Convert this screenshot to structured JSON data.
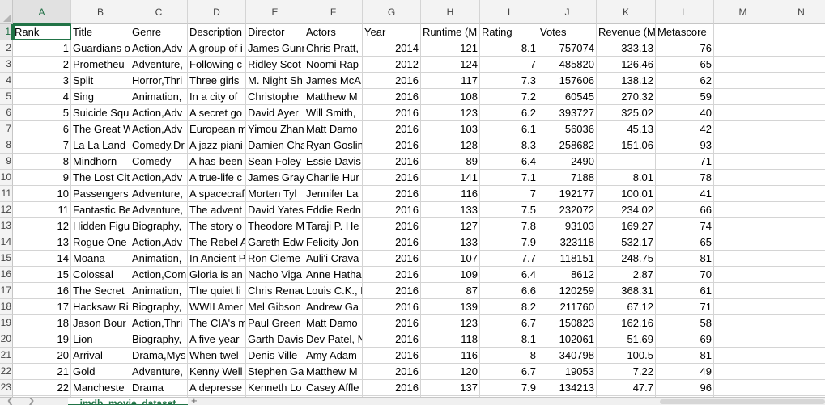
{
  "columns": [
    "A",
    "B",
    "C",
    "D",
    "E",
    "F",
    "G",
    "H",
    "I",
    "J",
    "K",
    "L",
    "M",
    "N"
  ],
  "headers": [
    "Rank",
    "Title",
    "Genre",
    "Description",
    "Director",
    "Actors",
    "Year",
    "Runtime (Minutes)",
    "Rating",
    "Votes",
    "Revenue (Millions)",
    "Metascore"
  ],
  "header_display": [
    "Rank",
    "Title",
    "Genre",
    "Description",
    "Director",
    "Actors",
    "Year",
    "Runtime (M",
    "Rating",
    "Votes",
    "Revenue (M",
    "Metascore"
  ],
  "row_numbers_visible": [
    "1",
    "2",
    "3",
    "4",
    "5",
    "6",
    "7",
    "8",
    "9",
    "10",
    "11",
    "12",
    "13",
    "14",
    "15",
    "16",
    "17",
    "18",
    "19",
    "20",
    "21",
    "22",
    "23"
  ],
  "rows": [
    [
      "1",
      "Guardians o",
      "Action,Adv",
      "A group of i",
      "James Gunn",
      "Chris Pratt,",
      "2014",
      "121",
      "8.1",
      "757074",
      "333.13",
      "76"
    ],
    [
      "2",
      "Prometheu",
      "Adventure,",
      "Following c",
      "Ridley Scot",
      "Noomi Rap",
      "2012",
      "124",
      "7",
      "485820",
      "126.46",
      "65"
    ],
    [
      "3",
      "Split",
      "Horror,Thri",
      "Three girls",
      "M. Night Sh",
      "James McA",
      "2016",
      "117",
      "7.3",
      "157606",
      "138.12",
      "62"
    ],
    [
      "4",
      "Sing",
      "Animation,",
      "In a city of",
      "Christophe",
      "Matthew M",
      "2016",
      "108",
      "7.2",
      "60545",
      "270.32",
      "59"
    ],
    [
      "5",
      "Suicide Squ",
      "Action,Adv",
      "A secret go",
      "David Ayer",
      "Will Smith,",
      "2016",
      "123",
      "6.2",
      "393727",
      "325.02",
      "40"
    ],
    [
      "6",
      "The Great W",
      "Action,Adv",
      "European m",
      "Yimou Zhan",
      "Matt Damo",
      "2016",
      "103",
      "6.1",
      "56036",
      "45.13",
      "42"
    ],
    [
      "7",
      "La La Land",
      "Comedy,Dr",
      "A jazz piani",
      "Damien Cha",
      "Ryan Goslin",
      "2016",
      "128",
      "8.3",
      "258682",
      "151.06",
      "93"
    ],
    [
      "8",
      "Mindhorn",
      "Comedy",
      "A has-been",
      "Sean Foley",
      "Essie Davis,",
      "2016",
      "89",
      "6.4",
      "2490",
      "",
      "71"
    ],
    [
      "9",
      "The Lost Cit",
      "Action,Adv",
      "A true-life c",
      "James Gray",
      "Charlie Hur",
      "2016",
      "141",
      "7.1",
      "7188",
      "8.01",
      "78"
    ],
    [
      "10",
      "Passengers",
      "Adventure,",
      "A spacecraf",
      "Morten Tyl",
      "Jennifer La",
      "2016",
      "116",
      "7",
      "192177",
      "100.01",
      "41"
    ],
    [
      "11",
      "Fantastic Be",
      "Adventure,",
      "The advent",
      "David Yates",
      "Eddie Redn",
      "2016",
      "133",
      "7.5",
      "232072",
      "234.02",
      "66"
    ],
    [
      "12",
      "Hidden Figu",
      "Biography,",
      "The story o",
      "Theodore M",
      "Taraji P. He",
      "2016",
      "127",
      "7.8",
      "93103",
      "169.27",
      "74"
    ],
    [
      "13",
      "Rogue One",
      "Action,Adv",
      "The Rebel A",
      "Gareth Edw",
      "Felicity Jon",
      "2016",
      "133",
      "7.9",
      "323118",
      "532.17",
      "65"
    ],
    [
      "14",
      "Moana",
      "Animation,",
      "In Ancient P",
      "Ron Cleme",
      "Auli'i Crava",
      "2016",
      "107",
      "7.7",
      "118151",
      "248.75",
      "81"
    ],
    [
      "15",
      "Colossal",
      "Action,Com",
      "Gloria is an",
      "Nacho Viga",
      "Anne Hatha",
      "2016",
      "109",
      "6.4",
      "8612",
      "2.87",
      "70"
    ],
    [
      "16",
      "The Secret",
      "Animation,",
      "The quiet li",
      "Chris Renau",
      "Louis C.K., E",
      "2016",
      "87",
      "6.6",
      "120259",
      "368.31",
      "61"
    ],
    [
      "17",
      "Hacksaw Ri",
      "Biography,",
      "WWII Amer",
      "Mel Gibson",
      "Andrew Ga",
      "2016",
      "139",
      "8.2",
      "211760",
      "67.12",
      "71"
    ],
    [
      "18",
      "Jason Bour",
      "Action,Thri",
      "The CIA's m",
      "Paul Green",
      "Matt Damo",
      "2016",
      "123",
      "6.7",
      "150823",
      "162.16",
      "58"
    ],
    [
      "19",
      "Lion",
      "Biography,",
      "A five-year",
      "Garth Davis",
      "Dev Patel, N",
      "2016",
      "118",
      "8.1",
      "102061",
      "51.69",
      "69"
    ],
    [
      "20",
      "Arrival",
      "Drama,Mys",
      "When twel",
      "Denis Ville",
      "Amy Adam",
      "2016",
      "116",
      "8",
      "340798",
      "100.5",
      "81"
    ],
    [
      "21",
      "Gold",
      "Adventure,",
      "Kenny Well",
      "Stephen Ga",
      "Matthew M",
      "2016",
      "120",
      "6.7",
      "19053",
      "7.22",
      "49"
    ],
    [
      "22",
      "Mancheste",
      "Drama",
      "A depresse",
      "Kenneth Lo",
      "Casey Affle",
      "2016",
      "137",
      "7.9",
      "134213",
      "47.7",
      "96"
    ]
  ],
  "selected_cell": "A1",
  "sheet_tab": "imdb_movie_dataset",
  "add_sheet_symbol": "+",
  "icons": {
    "nav_prev": "left-chevron-icon",
    "nav_next": "right-chevron-icon"
  },
  "colors": {
    "accent": "#217346",
    "header_bg": "#f3f3f3",
    "grid": "#d4d4d4"
  }
}
